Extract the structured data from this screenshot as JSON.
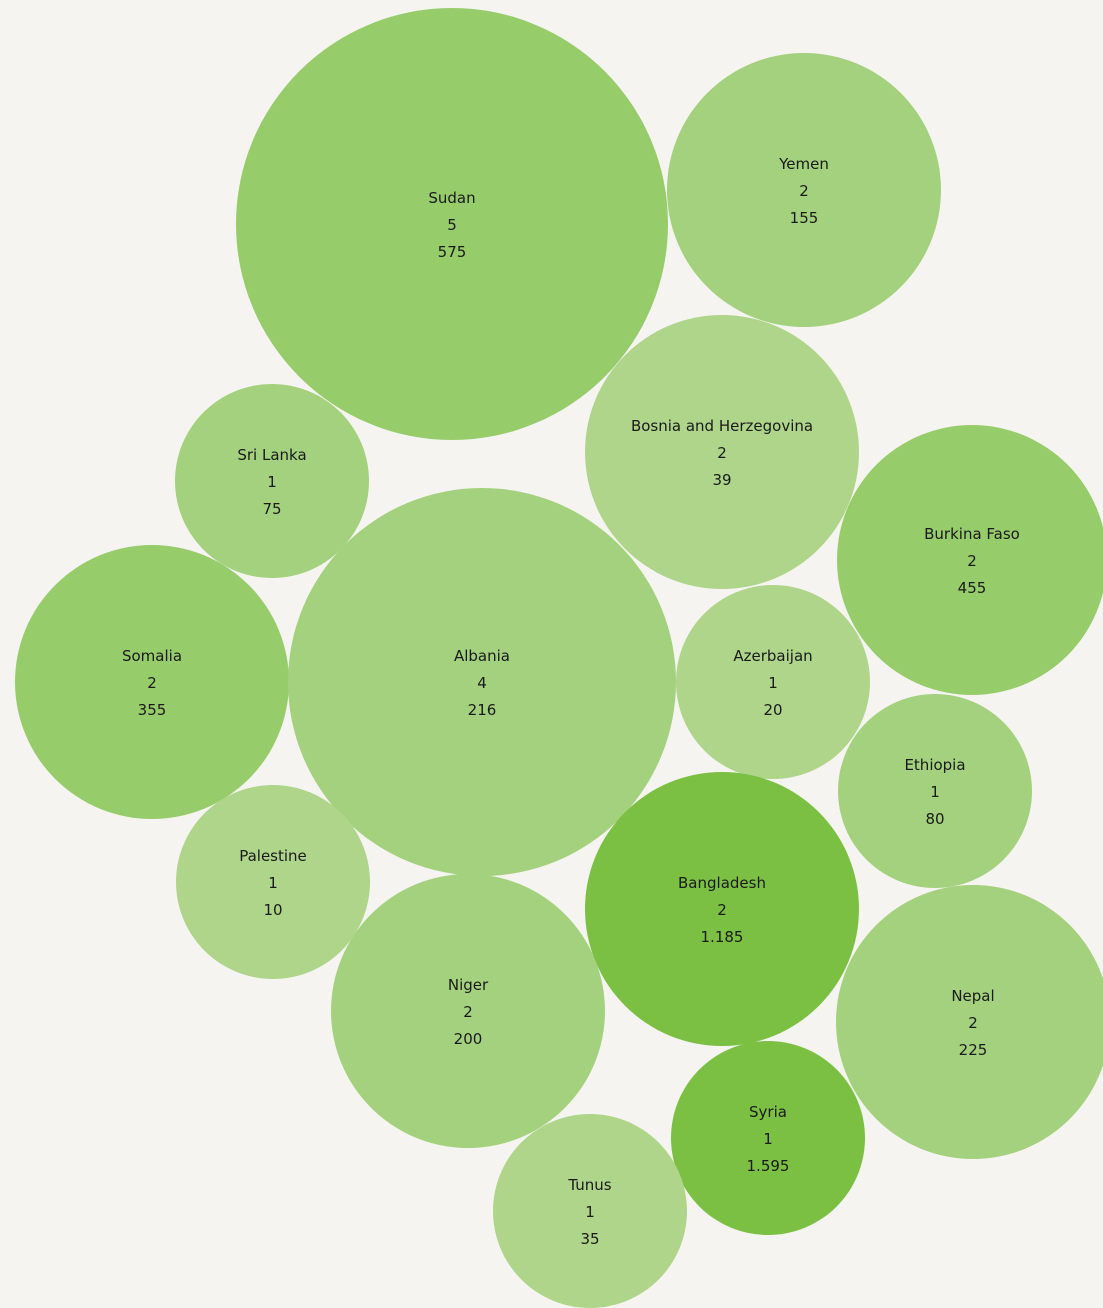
{
  "chart_data": {
    "type": "bubble",
    "colors": {
      "background": "#f5f4f0",
      "scale": [
        "#aed58a",
        "#a4d17d",
        "#97cc6b",
        "#8bc656",
        "#7bc043"
      ]
    },
    "items": [
      {
        "name": "Sudan",
        "count": "5",
        "value": "575"
      },
      {
        "name": "Yemen",
        "count": "2",
        "value": "155"
      },
      {
        "name": "Sri Lanka",
        "count": "1",
        "value": "75"
      },
      {
        "name": "Bosnia and Herzegovina",
        "count": "2",
        "value": "39"
      },
      {
        "name": "Burkina Faso",
        "count": "2",
        "value": "455"
      },
      {
        "name": "Somalia",
        "count": "2",
        "value": "355"
      },
      {
        "name": "Albania",
        "count": "4",
        "value": "216"
      },
      {
        "name": "Azerbaijan",
        "count": "1",
        "value": "20"
      },
      {
        "name": "Ethiopia",
        "count": "1",
        "value": "80"
      },
      {
        "name": "Palestine",
        "count": "1",
        "value": "10"
      },
      {
        "name": "Bangladesh",
        "count": "2",
        "value": "1.185"
      },
      {
        "name": "Niger",
        "count": "2",
        "value": "200"
      },
      {
        "name": "Nepal",
        "count": "2",
        "value": "225"
      },
      {
        "name": "Syria",
        "count": "1",
        "value": "1.595"
      },
      {
        "name": "Tunus",
        "count": "1",
        "value": "35"
      }
    ]
  }
}
